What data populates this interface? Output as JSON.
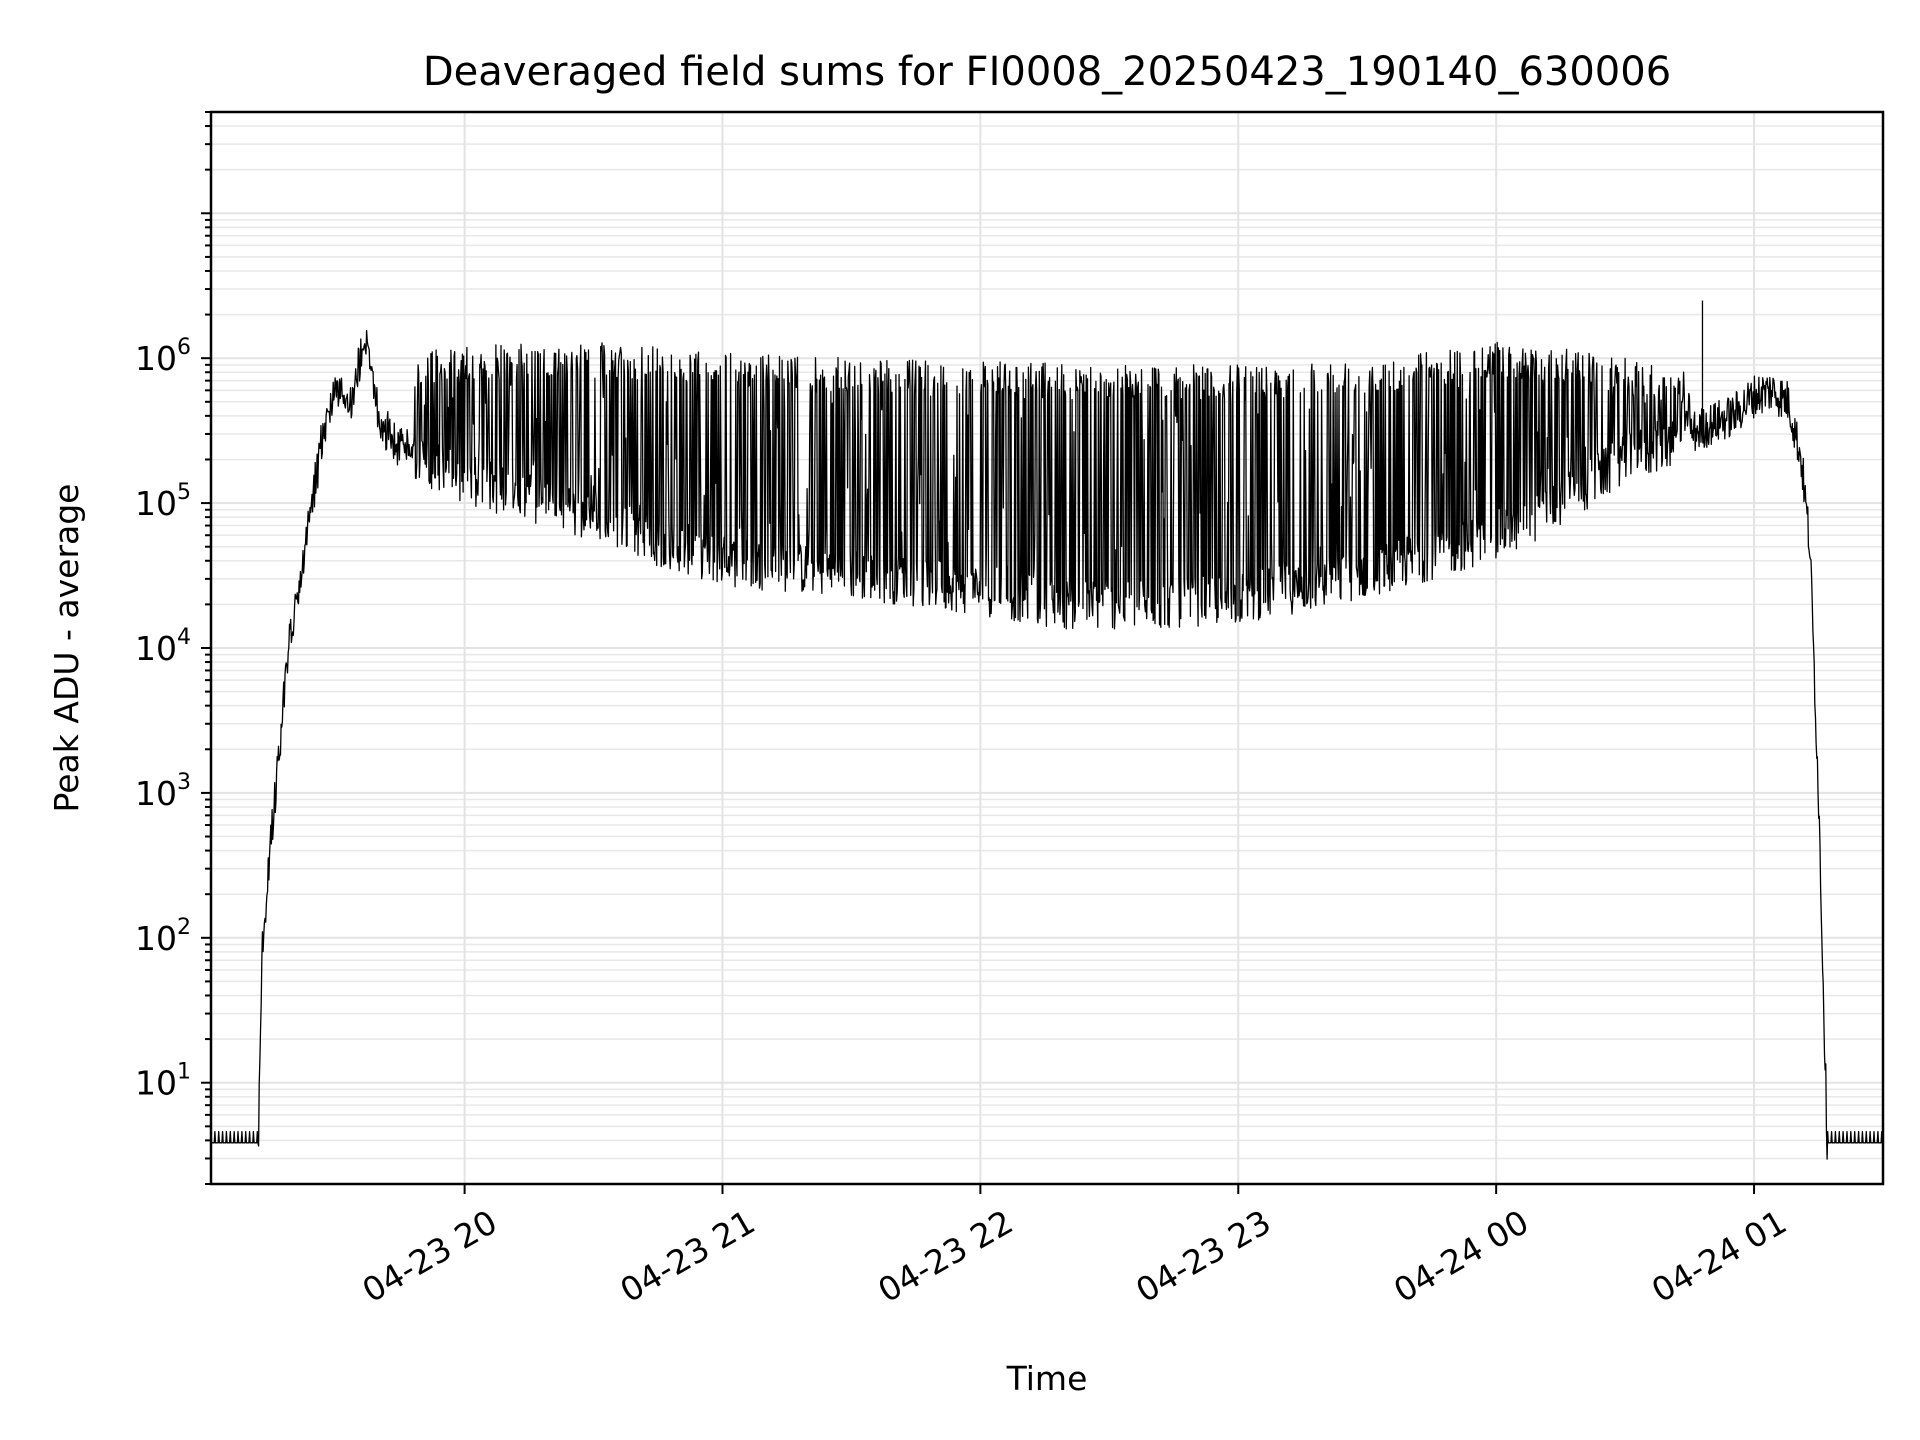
{
  "chart_data": {
    "type": "line",
    "title": "Deaveraged field sums for FI0008_20250423_190140_630006",
    "xlabel": "Time",
    "ylabel": "Peak ADU - average",
    "yscale": "log",
    "ylim": [
      2,
      50000000
    ],
    "xlim": [
      "2025-04-23 19:01",
      "2025-04-24 01:30"
    ],
    "x_ticks": [
      "04-23 20",
      "04-23 21",
      "04-23 22",
      "04-23 23",
      "04-24 00",
      "04-24 01"
    ],
    "y_ticks": [
      {
        "base": "10",
        "exp": "1"
      },
      {
        "base": "10",
        "exp": "2"
      },
      {
        "base": "10",
        "exp": "3"
      },
      {
        "base": "10",
        "exp": "4"
      },
      {
        "base": "10",
        "exp": "5"
      },
      {
        "base": "10",
        "exp": "6"
      }
    ],
    "grid": true,
    "series_color": "#000000",
    "series": [
      {
        "x": [
          "2025-04-23 19:01",
          "2025-04-23 19:12",
          "2025-04-23 19:13",
          "2025-04-23 19:16",
          "2025-04-23 19:19",
          "2025-04-23 19:21",
          "2025-04-23 19:24",
          "2025-04-23 19:27",
          "2025-04-23 19:30",
          "2025-04-23 19:33",
          "2025-04-23 19:37",
          "2025-04-23 19:40",
          "2025-04-23 19:44",
          "2025-04-23 19:48",
          "2025-04-23 19:52",
          "2025-04-23 19:56",
          "2025-04-23 20:00",
          "2025-04-23 20:10",
          "2025-04-23 20:20",
          "2025-04-23 20:30",
          "2025-04-23 20:40",
          "2025-04-23 20:50",
          "2025-04-23 21:00",
          "2025-04-23 21:20",
          "2025-04-23 21:40",
          "2025-04-23 22:00",
          "2025-04-23 22:20",
          "2025-04-23 22:40",
          "2025-04-23 23:00",
          "2025-04-23 23:20",
          "2025-04-23 23:40",
          "2025-04-24 00:00",
          "2025-04-24 00:15",
          "2025-04-24 00:30",
          "2025-04-24 00:45",
          "2025-04-24 00:50",
          "2025-04-24 00:55",
          "2025-04-24 01:00",
          "2025-04-24 01:04",
          "2025-04-24 01:08",
          "2025-04-24 01:11",
          "2025-04-24 01:13",
          "2025-04-24 01:15",
          "2025-04-24 01:17",
          "2025-04-24 01:30"
        ],
        "y": [
          4,
          4,
          100,
          1000,
          10000,
          20000,
          80000,
          300000,
          700000,
          400000,
          1500000,
          400000,
          250000,
          220000,
          180000,
          160000,
          150000,
          120000,
          100000,
          80000,
          60000,
          50000,
          40000,
          35000,
          30000,
          25000,
          20000,
          20000,
          22000,
          28000,
          40000,
          60000,
          100000,
          200000,
          300000,
          350000,
          400000,
          550000,
          600000,
          500000,
          200000,
          50000,
          1000,
          4,
          4
        ]
      },
      {
        "name": "",
        "x": [
          "2025-04-23 19:48",
          "2025-04-23 20:00",
          "2025-04-23 20:15",
          "2025-04-23 20:30",
          "2025-04-23 21:00",
          "2025-04-23 21:30",
          "2025-04-23 22:00",
          "2025-04-23 22:30",
          "2025-04-23 23:00",
          "2025-04-23 23:30",
          "2025-04-24 00:00",
          "2025-04-24 00:15",
          "2025-04-24 00:30",
          "2025-04-24 00:45"
        ],
        "y": [
          1100000,
          1200000,
          1300000,
          1300000,
          1100000,
          1000000,
          950000,
          900000,
          900000,
          1000000,
          1300000,
          1200000,
          1000000,
          800000
        ]
      }
    ],
    "annotations": [
      {
        "x": "2025-04-24 00:48",
        "y": 2500000
      }
    ]
  }
}
